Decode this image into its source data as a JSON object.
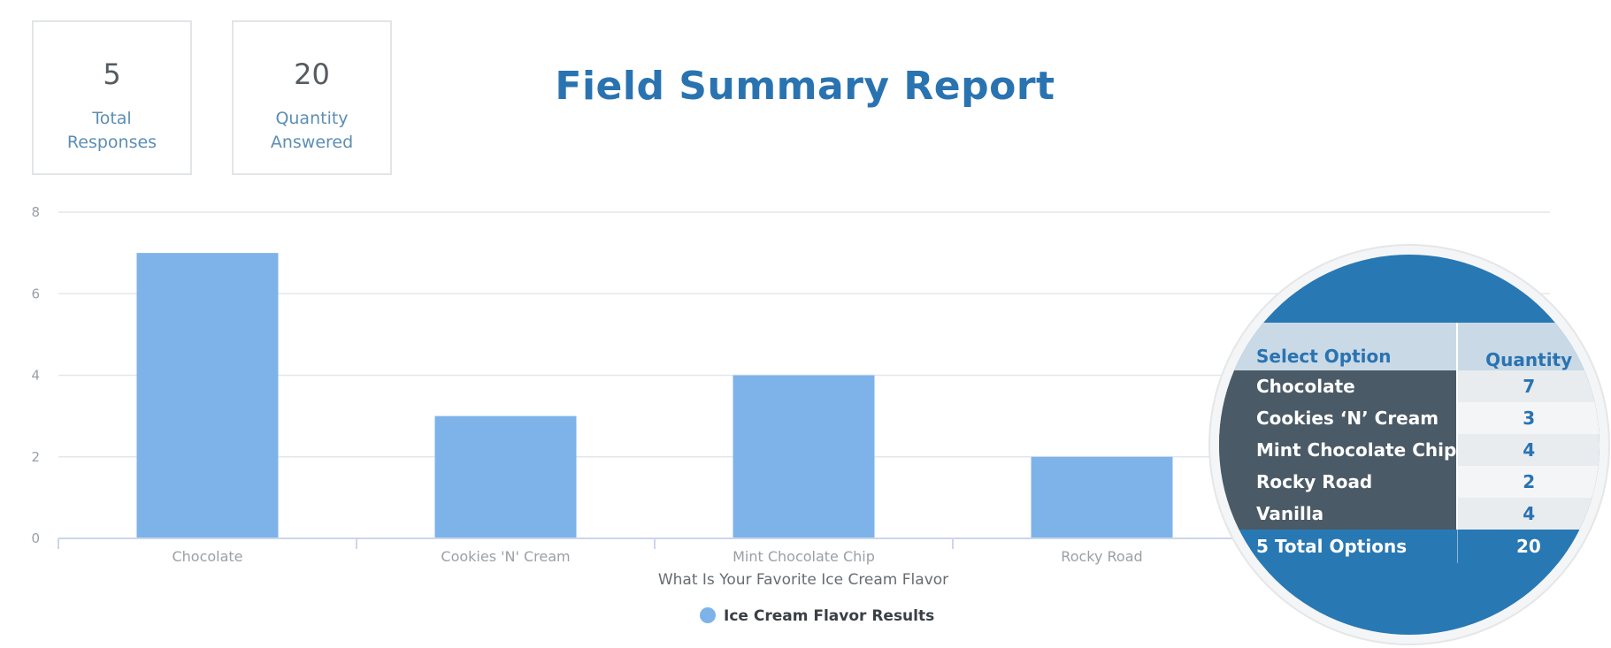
{
  "stats": {
    "total_responses": {
      "value": "5",
      "label": "Total Responses"
    },
    "quantity_answered": {
      "value": "20",
      "label": "Quantity Answered"
    }
  },
  "title": "Field Summary Report",
  "colors": {
    "bar": "#7eb3ea",
    "title": "#2a73b1",
    "table_header_bg": "#c9d9e6",
    "table_option_bg": "#4a5a66",
    "circle_bg": "#2878b3"
  },
  "chart_data": {
    "type": "bar",
    "categories": [
      "Chocolate",
      "Cookies 'N' Cream",
      "Mint Chocolate Chip",
      "Rocky Road",
      "Vanilla"
    ],
    "series": [
      {
        "name": "Ice Cream Flavor Results",
        "values": [
          7,
          3,
          4,
          2,
          4
        ]
      }
    ],
    "xlabel": "What Is Your Favorite Ice Cream Flavor",
    "ylabel": "",
    "ylim": [
      0,
      8
    ],
    "yticks": [
      0,
      2,
      4,
      6,
      8
    ],
    "grid": true,
    "legend": "bottom-center"
  },
  "summary_table": {
    "headers": {
      "option": "Select Option",
      "quantity": "Quantity"
    },
    "rows": [
      {
        "option": "Chocolate",
        "quantity": "7"
      },
      {
        "option": "Cookies ‘N’ Cream",
        "quantity": "3"
      },
      {
        "option": "Mint Chocolate Chip",
        "quantity": "4"
      },
      {
        "option": "Rocky Road",
        "quantity": "2"
      },
      {
        "option": "Vanilla",
        "quantity": "4"
      }
    ],
    "footer": {
      "option": "5 Total Options",
      "quantity": "20"
    }
  }
}
